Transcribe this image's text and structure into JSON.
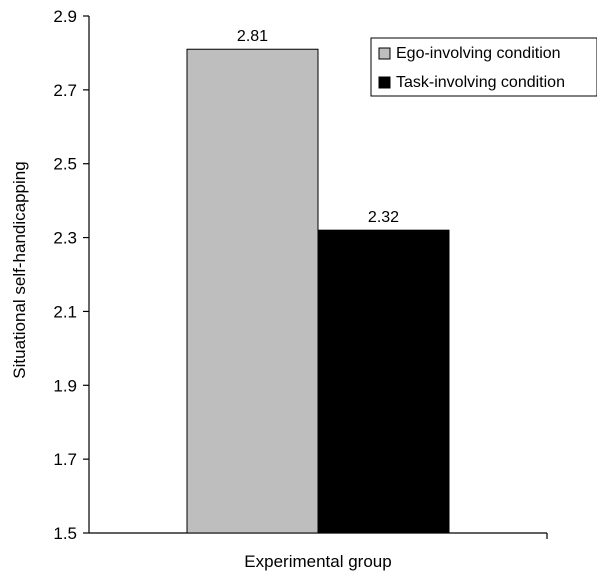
{
  "chart_data": {
    "type": "bar",
    "categories": [
      ""
    ],
    "series": [
      {
        "name": "Ego-involving condition",
        "values": [
          2.81
        ],
        "color": "#bebebe"
      },
      {
        "name": "Task-involving condition",
        "values": [
          2.32
        ],
        "color": "#000000"
      }
    ],
    "data_labels": [
      "2.81",
      "2.32"
    ],
    "title": "",
    "xlabel": "Experimental group",
    "ylabel": "Situational self-handicapping",
    "ylim": [
      1.5,
      2.9
    ],
    "yticks": [
      1.5,
      1.7,
      1.9,
      2.1,
      2.3,
      2.5,
      2.7,
      2.9
    ],
    "ytick_labels": [
      "1.5",
      "1.7",
      "1.9",
      "2.1",
      "2.3",
      "2.5",
      "2.7",
      "2.9"
    ],
    "grid": false,
    "legend_position": "top-right"
  }
}
